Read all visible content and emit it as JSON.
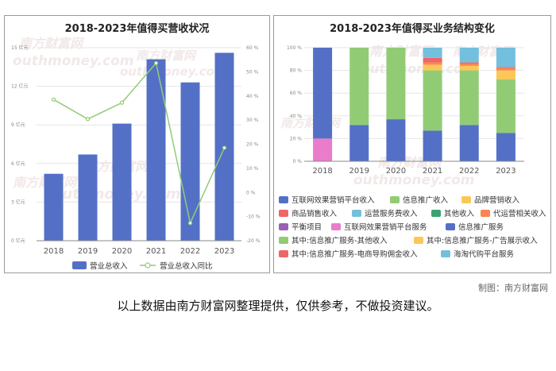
{
  "charts": {
    "left": {
      "title": "2018-2023年值得买营收状况",
      "left_axis_ticks": [
        "0 亿元",
        "3 亿元",
        "6 亿元",
        "9 亿元",
        "12 亿元",
        "15 亿元"
      ],
      "right_axis_ticks": [
        "-20 %",
        "-10 %",
        "0 %",
        "10 %",
        "20 %",
        "30 %",
        "40 %",
        "50 %",
        "60 %"
      ],
      "legend": [
        "营业总收入",
        "营业总收入同比"
      ]
    },
    "right": {
      "title": "2018-2023年值得买业务结构变化",
      "y_ticks": [
        "0 %",
        "20 %",
        "40 %",
        "60 %",
        "80 %",
        "100 %"
      ],
      "legend": [
        "互联网效果营销平台收入",
        "信息推广收入",
        "品牌营销收入",
        "商品销售收入",
        "运营服务费收入",
        "其他收入",
        "代运营相关收入",
        "平衡项目",
        "互联网效果营销平台服务",
        "信息推广服务",
        "其中:信息推广服务-其他收入",
        "其中:信息推广服务-广告展示收入",
        "其中:信息推广服务-电商导购佣金收入",
        "海淘代购平台服务"
      ]
    }
  },
  "watermark": {
    "brand": "南方财富网",
    "url": "outhmoney.com"
  },
  "footer": {
    "source": "制图：南方财富网",
    "disclaimer": "以上数据由南方财富网整理提供，仅供参考，不做投资建议。"
  },
  "colors": {
    "blue": "#5470c6",
    "green": "#91cc75",
    "yellow": "#fac858",
    "red": "#ee6666",
    "cyan": "#73c0de",
    "teal": "#3ba272",
    "orange": "#fc8452",
    "purple": "#9a60b4",
    "pink": "#ea7ccc"
  },
  "chart_data": [
    {
      "type": "bar",
      "title": "2018-2023年值得买营收状况",
      "categories": [
        "2018",
        "2019",
        "2020",
        "2021",
        "2022",
        "2023"
      ],
      "series": [
        {
          "name": "营业总收入",
          "values": [
            5.2,
            6.7,
            9.1,
            14.1,
            12.3,
            14.6
          ],
          "axis": "left",
          "kind": "bar"
        },
        {
          "name": "营业总收入同比",
          "values": [
            38.5,
            30.4,
            37.2,
            53.6,
            -12.7,
            18.5
          ],
          "axis": "right",
          "kind": "line"
        }
      ],
      "ylim": [
        0,
        15
      ],
      "y2lim": [
        -20,
        60
      ]
    },
    {
      "type": "bar",
      "stacked": true,
      "title": "2018-2023年值得买业务结构变化",
      "categories": [
        "2018",
        "2019",
        "2020",
        "2021",
        "2022",
        "2023"
      ],
      "series": [
        {
          "name": "互联网效果营销平台服务",
          "values": [
            20,
            0,
            0,
            0,
            0,
            0
          ]
        },
        {
          "name": "互联网效果营销平台收入",
          "values": [
            80,
            32,
            37,
            27,
            32,
            25
          ]
        },
        {
          "name": "信息推广收入",
          "values": [
            0,
            68,
            63,
            53,
            48,
            47
          ]
        },
        {
          "name": "品牌营销收入",
          "values": [
            0,
            0,
            0,
            5,
            4,
            8
          ]
        },
        {
          "name": "其中:信息推广服务-广告展示收入",
          "values": [
            0,
            0,
            0,
            2,
            2,
            2
          ]
        },
        {
          "name": "商品销售收入",
          "values": [
            0,
            0,
            0,
            4,
            1,
            1
          ]
        },
        {
          "name": "海淘代购平台服务",
          "values": [
            0,
            0,
            0,
            9,
            13,
            17
          ]
        }
      ],
      "ylim": [
        0,
        100
      ]
    }
  ]
}
